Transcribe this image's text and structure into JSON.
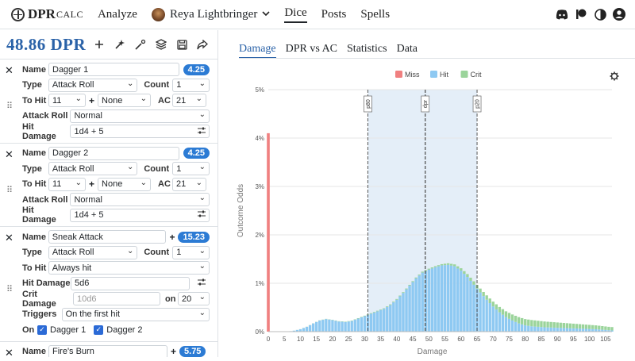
{
  "nav": {
    "brand_main": "DPR",
    "brand_sub": "CALC",
    "links": [
      "Analyze",
      "Dice",
      "Posts",
      "Spells"
    ],
    "character": "Reya Lightbringer",
    "icons": [
      "discord-icon",
      "patreon-icon",
      "contrast-icon",
      "account-icon"
    ]
  },
  "left": {
    "dpr": "48.86 DPR",
    "tools": [
      "plus-icon",
      "wand-icon",
      "magic-icon",
      "layers-icon",
      "save-icon",
      "share-icon"
    ],
    "cards": [
      {
        "name": "Dagger 1",
        "dmg": "4.25",
        "type": "Attack Roll",
        "count_label": "Count",
        "count": "1",
        "to_hit": "11",
        "plus": "+",
        "bonus": "None",
        "ac_label": "AC",
        "ac": "21",
        "attack_roll": "Normal",
        "hit_damage": "1d4 + 5"
      },
      {
        "name": "Dagger 2",
        "dmg": "4.25",
        "type": "Attack Roll",
        "count_label": "Count",
        "count": "1",
        "to_hit": "11",
        "plus": "+",
        "bonus": "None",
        "ac_label": "AC",
        "ac": "21",
        "attack_roll": "Normal",
        "hit_damage": "1d4 + 5"
      },
      {
        "name": "Sneak Attack",
        "dmg": "15.23",
        "type": "Attack Roll",
        "count_label": "Count",
        "count": "1",
        "to_hit": "Always hit",
        "hit_damage": "5d6",
        "crit_damage_placeholder": "10d6",
        "on_label": "on",
        "crit_on": "20",
        "triggers": "On the first hit",
        "on_checks_label": "On",
        "check1": "Dagger 1",
        "check2": "Dagger 2"
      },
      {
        "name": "Fire's Burn",
        "dmg": "5.75"
      }
    ],
    "labels": {
      "name": "Name",
      "type": "Type",
      "to_hit": "To Hit",
      "attack_roll": "Attack Roll",
      "hit_damage": "Hit Damage",
      "crit_damage": "Crit Damage",
      "triggers": "Triggers"
    }
  },
  "right": {
    "tabs": [
      "Damage",
      "DPR vs AC",
      "Statistics",
      "Data"
    ],
    "active_tab": "Damage"
  },
  "chart_data": {
    "type": "bar",
    "xlabel": "Damage",
    "ylabel": "Outcome Odds",
    "xlim": [
      0,
      107
    ],
    "ylim": [
      0,
      5
    ],
    "yticks": [
      "0%",
      "1%",
      "2%",
      "3%",
      "4%",
      "5%"
    ],
    "xticks": [
      0,
      5,
      10,
      15,
      20,
      25,
      30,
      35,
      40,
      45,
      50,
      55,
      60,
      65,
      70,
      75,
      80,
      85,
      90,
      95,
      100,
      105
    ],
    "legend": [
      {
        "name": "Miss",
        "color": "#f08080"
      },
      {
        "name": "Hit",
        "color": "#8ec9f2"
      },
      {
        "name": "Crit",
        "color": "#9bd49b"
      }
    ],
    "legend_position": "top",
    "markers": [
      {
        "label": "p80",
        "x": 31
      },
      {
        "label": "dpr",
        "x": 48.86
      },
      {
        "label": "p20",
        "x": 65
      }
    ],
    "miss": {
      "x": 0,
      "value": 4.1
    },
    "hit_curve": [
      [
        6,
        0.0
      ],
      [
        8,
        0.02
      ],
      [
        10,
        0.05
      ],
      [
        12,
        0.1
      ],
      [
        14,
        0.17
      ],
      [
        16,
        0.23
      ],
      [
        18,
        0.26
      ],
      [
        20,
        0.24
      ],
      [
        22,
        0.21
      ],
      [
        24,
        0.2
      ],
      [
        26,
        0.22
      ],
      [
        28,
        0.27
      ],
      [
        30,
        0.32
      ],
      [
        32,
        0.37
      ],
      [
        34,
        0.42
      ],
      [
        36,
        0.47
      ],
      [
        38,
        0.55
      ],
      [
        40,
        0.66
      ],
      [
        42,
        0.8
      ],
      [
        44,
        0.95
      ],
      [
        46,
        1.1
      ],
      [
        48,
        1.22
      ],
      [
        50,
        1.28
      ],
      [
        52,
        1.33
      ],
      [
        54,
        1.37
      ],
      [
        56,
        1.38
      ],
      [
        58,
        1.35
      ],
      [
        60,
        1.26
      ],
      [
        62,
        1.13
      ],
      [
        64,
        0.97
      ],
      [
        66,
        0.81
      ],
      [
        68,
        0.66
      ],
      [
        70,
        0.52
      ],
      [
        72,
        0.4
      ],
      [
        74,
        0.3
      ],
      [
        76,
        0.23
      ],
      [
        78,
        0.17
      ],
      [
        80,
        0.13
      ],
      [
        82,
        0.11
      ],
      [
        84,
        0.1
      ],
      [
        86,
        0.09
      ],
      [
        88,
        0.085
      ],
      [
        90,
        0.08
      ],
      [
        92,
        0.075
      ],
      [
        94,
        0.07
      ],
      [
        96,
        0.065
      ],
      [
        98,
        0.06
      ],
      [
        100,
        0.055
      ],
      [
        102,
        0.05
      ],
      [
        104,
        0.04
      ],
      [
        106,
        0.03
      ],
      [
        107,
        0.025
      ]
    ],
    "crit_curve": [
      [
        6,
        0.0
      ],
      [
        20,
        0.005
      ],
      [
        30,
        0.01
      ],
      [
        40,
        0.015
      ],
      [
        48,
        0.02
      ],
      [
        54,
        0.025
      ],
      [
        58,
        0.04
      ],
      [
        62,
        0.06
      ],
      [
        66,
        0.08
      ],
      [
        70,
        0.1
      ],
      [
        74,
        0.12
      ],
      [
        78,
        0.13
      ],
      [
        82,
        0.13
      ],
      [
        86,
        0.12
      ],
      [
        90,
        0.11
      ],
      [
        94,
        0.1
      ],
      [
        98,
        0.09
      ],
      [
        102,
        0.08
      ],
      [
        106,
        0.07
      ],
      [
        107,
        0.07
      ]
    ]
  }
}
